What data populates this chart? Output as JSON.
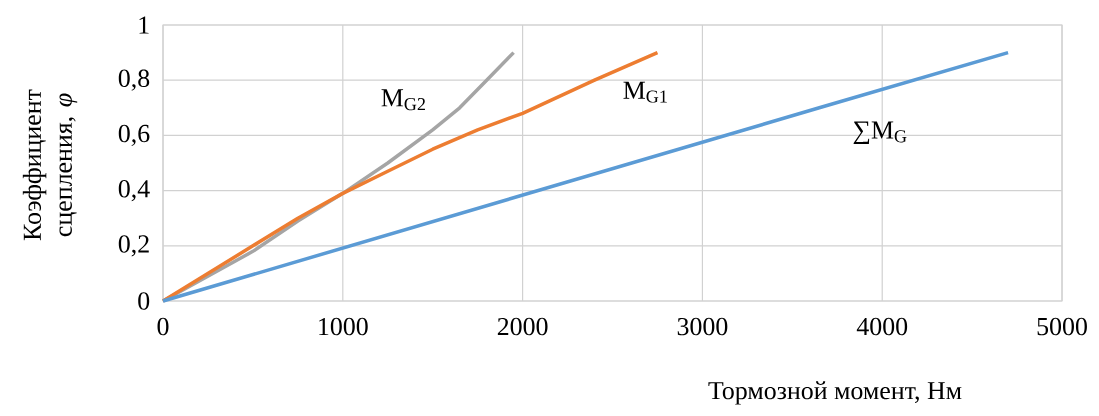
{
  "chart_data": {
    "type": "line",
    "xlabel": "Тормозной момент, Нм",
    "ylabel": "Коэффициент сцепления, *φ*",
    "xlim": [
      0,
      5000
    ],
    "ylim": [
      0,
      1
    ],
    "xticks": [
      0,
      1000,
      2000,
      3000,
      4000,
      5000
    ],
    "yticks": [
      0,
      {
        "value": 0.2,
        "label": "0,2"
      },
      {
        "value": 0.4,
        "label": "0,4"
      },
      {
        "value": 0.6,
        "label": "0,6"
      },
      {
        "value": 0.8,
        "label": "0,8"
      },
      1
    ],
    "grid": true,
    "legend": false,
    "marker": "none",
    "line_style": "solid",
    "series": [
      {
        "name": "M$_{G2}$",
        "color": "#a5a5a5",
        "x": [
          0,
          250,
          500,
          750,
          1000,
          1250,
          1500,
          1650,
          1800,
          1950
        ],
        "values": [
          0,
          0.09,
          0.18,
          0.29,
          0.39,
          0.5,
          0.62,
          0.7,
          0.8,
          0.9
        ]
      },
      {
        "name": "M$_{G1}$",
        "color": "#ed7d31",
        "x": [
          0,
          250,
          500,
          750,
          1000,
          1250,
          1500,
          1750,
          2000,
          2400,
          2750
        ],
        "values": [
          0,
          0.1,
          0.2,
          0.3,
          0.39,
          0.47,
          0.55,
          0.62,
          0.68,
          0.8,
          0.9
        ]
      },
      {
        "name": "∑M$_{G}$",
        "color": "#5b9bd5",
        "x": [
          0,
          3650,
          4700
        ],
        "values": [
          0,
          0.7,
          0.9
        ]
      }
    ]
  }
}
